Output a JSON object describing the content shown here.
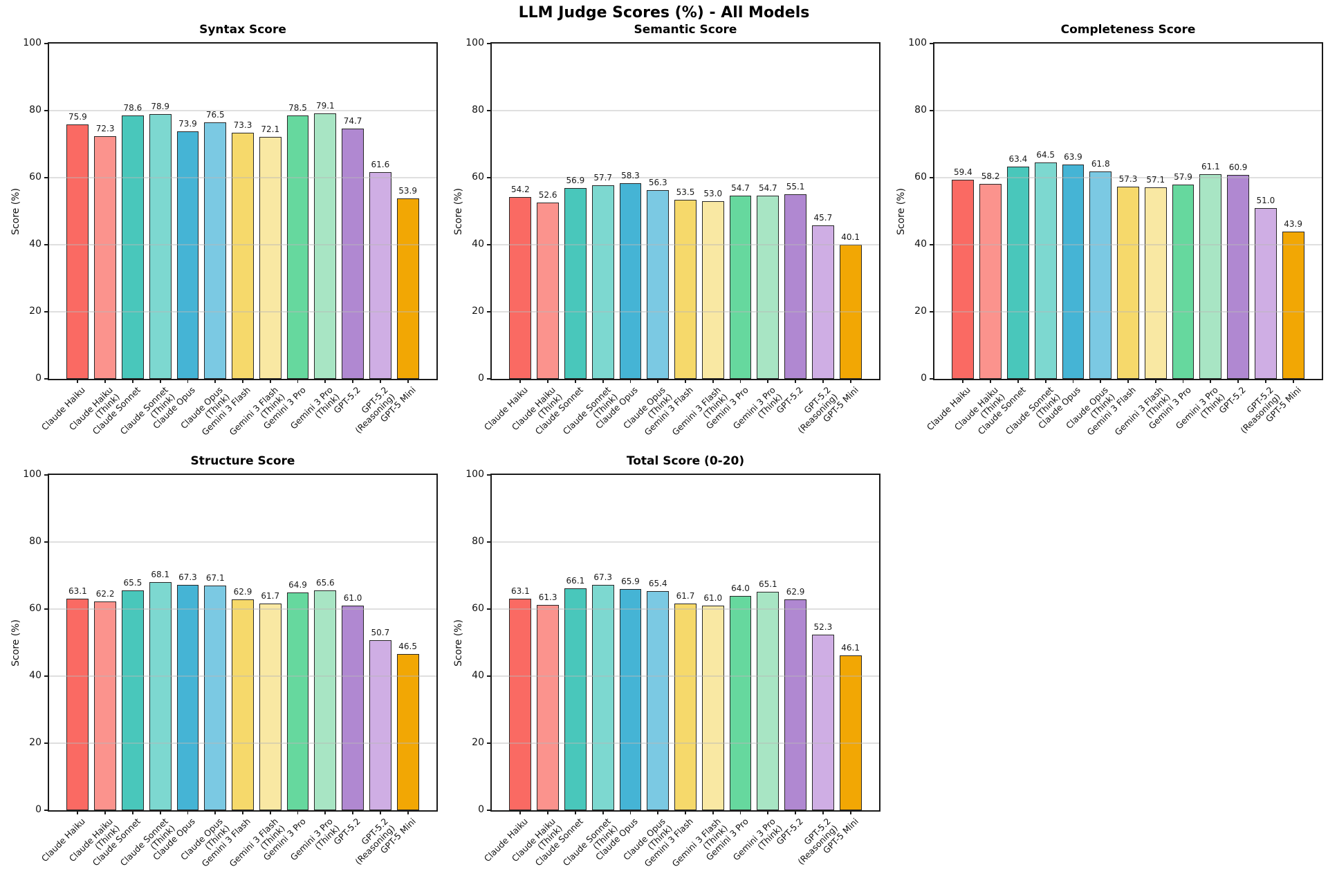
{
  "figure": {
    "suptitle": "LLM Judge Scores (%) - All Models",
    "ylabel": "Score (%)",
    "yticks": [
      0,
      20,
      40,
      60,
      80,
      100
    ],
    "ylim": [
      0,
      100
    ],
    "categories": [
      "Claude Haiku",
      "Claude Haiku\n(Think)",
      "Claude Sonnet",
      "Claude Sonnet\n(Think)",
      "Claude Opus",
      "Claude Opus\n(Think)",
      "Gemini 3 Flash",
      "Gemini 3 Flash\n(Think)",
      "Gemini 3 Pro",
      "Gemini 3 Pro\n(Think)",
      "GPT-5.2",
      "GPT-5.2\n(Reasoning)",
      "GPT-5 Mini"
    ],
    "bar_colors": [
      "#FA6A63",
      "#FB938D",
      "#49C7BB",
      "#7DD8D0",
      "#45B4D5",
      "#7BC9E3",
      "#F6D96B",
      "#F9E8A3",
      "#66D89E",
      "#A8E5C4",
      "#B088D1",
      "#CFAEE4",
      "#F2A704"
    ]
  },
  "chart_data": [
    {
      "type": "bar",
      "title": "Syntax Score",
      "xlabel": "",
      "ylabel": "Score (%)",
      "ylim": [
        0,
        100
      ],
      "grid": true,
      "categories": [
        "Claude Haiku",
        "Claude Haiku (Think)",
        "Claude Sonnet",
        "Claude Sonnet (Think)",
        "Claude Opus",
        "Claude Opus (Think)",
        "Gemini 3 Flash",
        "Gemini 3 Flash (Think)",
        "Gemini 3 Pro",
        "Gemini 3 Pro (Think)",
        "GPT-5.2",
        "GPT-5.2 (Reasoning)",
        "GPT-5 Mini"
      ],
      "values": [
        75.9,
        72.3,
        78.6,
        78.9,
        73.9,
        76.5,
        73.3,
        72.1,
        78.5,
        79.1,
        74.7,
        61.6,
        53.9
      ]
    },
    {
      "type": "bar",
      "title": "Semantic Score",
      "xlabel": "",
      "ylabel": "Score (%)",
      "ylim": [
        0,
        100
      ],
      "grid": true,
      "categories": [
        "Claude Haiku",
        "Claude Haiku (Think)",
        "Claude Sonnet",
        "Claude Sonnet (Think)",
        "Claude Opus",
        "Claude Opus (Think)",
        "Gemini 3 Flash",
        "Gemini 3 Flash (Think)",
        "Gemini 3 Pro",
        "Gemini 3 Pro (Think)",
        "GPT-5.2",
        "GPT-5.2 (Reasoning)",
        "GPT-5 Mini"
      ],
      "values": [
        54.2,
        52.6,
        56.9,
        57.7,
        58.3,
        56.3,
        53.5,
        53.0,
        54.7,
        54.7,
        55.1,
        45.7,
        40.1
      ]
    },
    {
      "type": "bar",
      "title": "Completeness Score",
      "xlabel": "",
      "ylabel": "Score (%)",
      "ylim": [
        0,
        100
      ],
      "grid": true,
      "categories": [
        "Claude Haiku",
        "Claude Haiku (Think)",
        "Claude Sonnet",
        "Claude Sonnet (Think)",
        "Claude Opus",
        "Claude Opus (Think)",
        "Gemini 3 Flash",
        "Gemini 3 Flash (Think)",
        "Gemini 3 Pro",
        "Gemini 3 Pro (Think)",
        "GPT-5.2",
        "GPT-5.2 (Reasoning)",
        "GPT-5 Mini"
      ],
      "values": [
        59.4,
        58.2,
        63.4,
        64.5,
        63.9,
        61.8,
        57.3,
        57.1,
        57.9,
        61.1,
        60.9,
        51.0,
        43.9
      ]
    },
    {
      "type": "bar",
      "title": "Structure Score",
      "xlabel": "",
      "ylabel": "Score (%)",
      "ylim": [
        0,
        100
      ],
      "grid": true,
      "categories": [
        "Claude Haiku",
        "Claude Haiku (Think)",
        "Claude Sonnet",
        "Claude Sonnet (Think)",
        "Claude Opus",
        "Claude Opus (Think)",
        "Gemini 3 Flash",
        "Gemini 3 Flash (Think)",
        "Gemini 3 Pro",
        "Gemini 3 Pro (Think)",
        "GPT-5.2",
        "GPT-5.2 (Reasoning)",
        "GPT-5 Mini"
      ],
      "values": [
        63.1,
        62.2,
        65.5,
        68.1,
        67.3,
        67.1,
        62.9,
        61.7,
        64.9,
        65.6,
        61.0,
        50.7,
        46.5
      ]
    },
    {
      "type": "bar",
      "title": "Total Score (0-20)",
      "xlabel": "",
      "ylabel": "Score (%)",
      "ylim": [
        0,
        100
      ],
      "grid": true,
      "categories": [
        "Claude Haiku",
        "Claude Haiku (Think)",
        "Claude Sonnet",
        "Claude Sonnet (Think)",
        "Claude Opus",
        "Claude Opus (Think)",
        "Gemini 3 Flash",
        "Gemini 3 Flash (Think)",
        "Gemini 3 Pro",
        "Gemini 3 Pro (Think)",
        "GPT-5.2",
        "GPT-5.2 (Reasoning)",
        "GPT-5 Mini"
      ],
      "values": [
        63.1,
        61.3,
        66.1,
        67.3,
        65.9,
        65.4,
        61.7,
        61.0,
        64.0,
        65.1,
        62.9,
        52.3,
        46.1
      ]
    }
  ]
}
